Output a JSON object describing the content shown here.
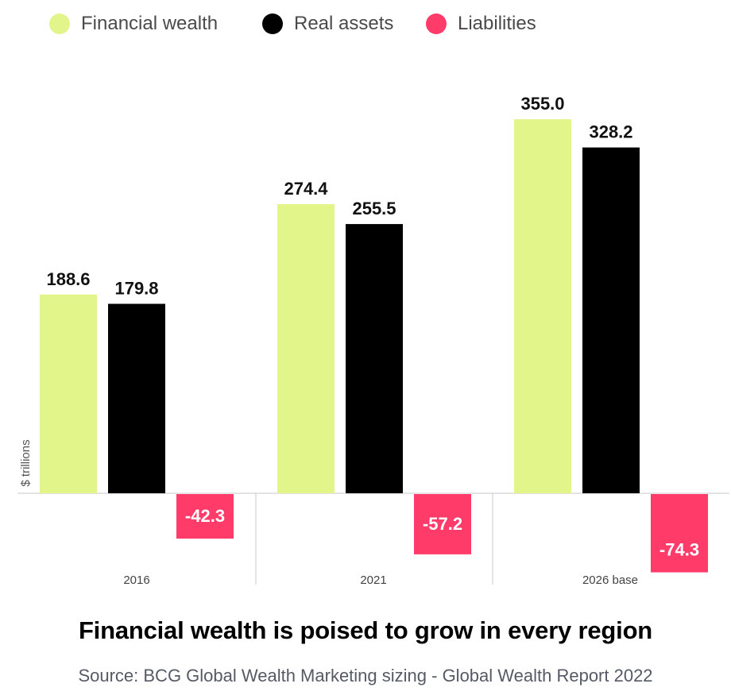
{
  "chart_data": {
    "type": "bar",
    "title": "Financial wealth is poised to grow in every region",
    "source": "Source: BCG Global Wealth Marketing sizing - Global Wealth Report 2022",
    "ylabel": "$ trillions",
    "xlabel": "",
    "categories": [
      "2016",
      "2021",
      "2026 base"
    ],
    "series": [
      {
        "name": "Financial wealth",
        "color": "#e2f58a",
        "values": [
          188.6,
          274.4,
          355.0
        ],
        "labels": [
          "188.6",
          "274.4",
          "355.0"
        ]
      },
      {
        "name": "Real assets",
        "color": "#000000",
        "values": [
          179.8,
          255.5,
          328.2
        ],
        "labels": [
          "179.8",
          "255.5",
          "328.2"
        ]
      },
      {
        "name": "Liabilities",
        "color": "#ff3b6a",
        "values": [
          -42.3,
          -57.2,
          -74.3
        ],
        "labels": [
          "-42.3",
          "-57.2",
          "-74.3"
        ]
      }
    ],
    "ylim": [
      -80,
      360
    ],
    "grid": false,
    "legend_position": "top",
    "data_labels": true
  }
}
